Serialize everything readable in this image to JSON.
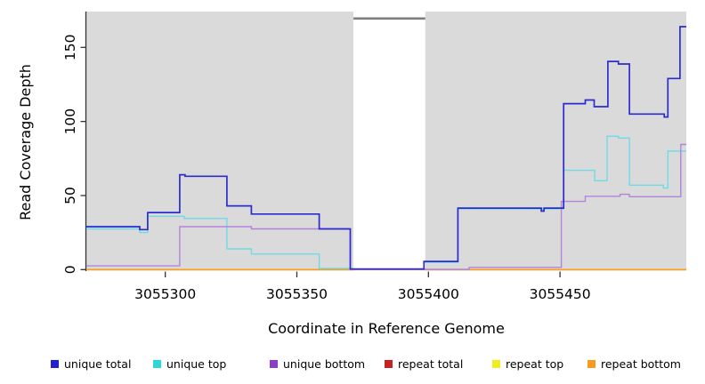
{
  "chart_data": {
    "type": "line",
    "step": true,
    "title": "",
    "xlabel": "Coordinate in Reference Genome",
    "ylabel": "Read Coverage Depth",
    "xlim": [
      3055270,
      3055498
    ],
    "ylim": [
      0,
      174
    ],
    "grid": false,
    "legend_position": "bottom",
    "x_ticks": [
      {
        "value": 3055300,
        "label": "3055300"
      },
      {
        "value": 3055350,
        "label": "3055350"
      },
      {
        "value": 3055400,
        "label": "3055400"
      },
      {
        "value": 3055450,
        "label": "3055450"
      }
    ],
    "y_ticks": [
      {
        "value": 0,
        "label": "0"
      },
      {
        "value": 50,
        "label": "50"
      },
      {
        "value": 100,
        "label": "100"
      },
      {
        "value": 150,
        "label": "150"
      }
    ],
    "covered_regions": [
      {
        "from": 3055270,
        "to": 3055371.5,
        "color": "#DADADA"
      },
      {
        "from": 3055398.8,
        "to": 3055498,
        "color": "#DADADA"
      }
    ],
    "gap_region": {
      "from": 3055371.5,
      "to": 3055398.8,
      "marker_value": 169.5,
      "marker_color": "#7E7E7E"
    },
    "series": [
      {
        "name": "unique-total",
        "legend_label": "unique total",
        "line_color": "#2C2CCE",
        "legend_color": "#2222CC",
        "line_width": 1.7,
        "points": [
          [
            3055270,
            29
          ],
          [
            3055290.3,
            27
          ],
          [
            3055293.3,
            38.5
          ],
          [
            3055305.5,
            64
          ],
          [
            3055307.5,
            63
          ],
          [
            3055323.4,
            43
          ],
          [
            3055332.7,
            37.5
          ],
          [
            3055358.5,
            27.5
          ],
          [
            3055370.3,
            0.4
          ],
          [
            3055398.3,
            5.5
          ],
          [
            3055411.2,
            41.5
          ],
          [
            3055442.9,
            39.5
          ],
          [
            3055443.9,
            41.5
          ],
          [
            3055451.4,
            112
          ],
          [
            3055459.6,
            114.5
          ],
          [
            3055463,
            110
          ],
          [
            3055468.2,
            140.5
          ],
          [
            3055472.2,
            138.8
          ],
          [
            3055476.4,
            105
          ],
          [
            3055489.6,
            103
          ],
          [
            3055491,
            129
          ],
          [
            3055495.6,
            164
          ]
        ]
      },
      {
        "name": "unique-top",
        "legend_label": "unique top",
        "line_color": "#6FDAE8",
        "legend_color": "#30D5D5",
        "line_width": 1.4,
        "points": [
          [
            3055270,
            27.5
          ],
          [
            3055290.3,
            25
          ],
          [
            3055293.3,
            36
          ],
          [
            3055307.2,
            34.5
          ],
          [
            3055323.4,
            14
          ],
          [
            3055332.7,
            10.5
          ],
          [
            3055358.5,
            0.8
          ],
          [
            3055370.3,
            0.3
          ],
          [
            3055398.3,
            5
          ],
          [
            3055411.2,
            41
          ],
          [
            3055451.4,
            67
          ],
          [
            3055463.2,
            60
          ],
          [
            3055467.9,
            90
          ],
          [
            3055472.2,
            88.8
          ],
          [
            3055476.4,
            57
          ],
          [
            3055489.3,
            55
          ],
          [
            3055491,
            80
          ]
        ]
      },
      {
        "name": "unique-bottom",
        "legend_label": "unique bottom",
        "line_color": "#B184DB",
        "legend_color": "#8B3FC6",
        "line_width": 1.4,
        "points": [
          [
            3055270,
            2.5
          ],
          [
            3055305.5,
            29
          ],
          [
            3055332.7,
            27.5
          ],
          [
            3055370.3,
            0.2
          ],
          [
            3055415.5,
            1.5
          ],
          [
            3055450.5,
            46
          ],
          [
            3055459.6,
            49.5
          ],
          [
            3055472.8,
            50.8
          ],
          [
            3055476.4,
            49.2
          ],
          [
            3055495.9,
            84.5
          ]
        ]
      },
      {
        "name": "repeat-total",
        "legend_label": "repeat total",
        "line_color": "#C62B2B",
        "legend_color": "#C62222",
        "line_width": 1.2,
        "points": [
          [
            3055270,
            0
          ]
        ]
      },
      {
        "name": "repeat-top",
        "legend_label": "repeat top",
        "line_color": "#F1F11B",
        "legend_color": "#EDED20",
        "line_width": 1.2,
        "points": [
          [
            3055270,
            0
          ]
        ]
      },
      {
        "name": "repeat-bottom",
        "legend_label": "repeat bottom",
        "line_color": "#FF9E1B",
        "legend_color": "#F59B20",
        "line_width": 1.7,
        "points": [
          [
            3055270,
            0
          ]
        ]
      }
    ],
    "draw_order": [
      4,
      3,
      5,
      1,
      2,
      0
    ],
    "axis_color": "#333333"
  }
}
